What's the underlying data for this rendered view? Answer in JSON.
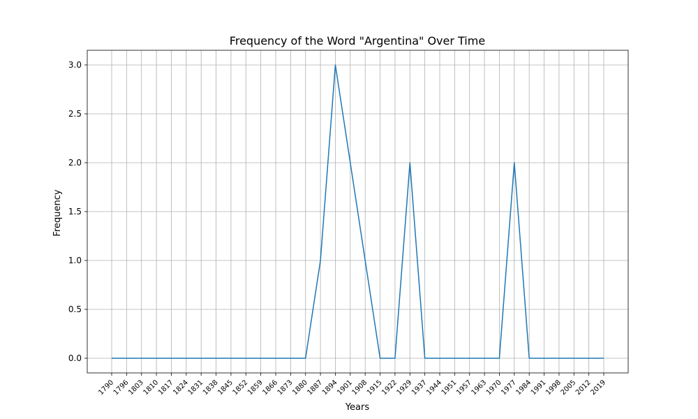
{
  "chart_data": {
    "type": "line",
    "title": "Frequency of the Word \"Argentina\" Over Time",
    "xlabel": "Years",
    "ylabel": "Frequency",
    "ylim": [
      -0.15,
      3.15
    ],
    "yticks": [
      0.0,
      0.5,
      1.0,
      1.5,
      2.0,
      2.5,
      3.0
    ],
    "ytick_labels": [
      "0.0",
      "0.5",
      "1.0",
      "1.5",
      "2.0",
      "2.5",
      "3.0"
    ],
    "grid": true,
    "colors": {
      "series": "#1f77b4",
      "grid": "#b0b0b0"
    },
    "x": [
      "1790",
      "1796",
      "1803",
      "1810",
      "1817",
      "1824",
      "1831",
      "1838",
      "1845",
      "1852",
      "1859",
      "1866",
      "1873",
      "1880",
      "1887",
      "1894",
      "1901",
      "1908",
      "1915",
      "1922",
      "1929",
      "1937",
      "1944",
      "1951",
      "1957",
      "1963",
      "1970",
      "1977",
      "1984",
      "1991",
      "1998",
      "2005",
      "2012",
      "2019"
    ],
    "series": [
      {
        "values": [
          0,
          0,
          0,
          0,
          0,
          0,
          0,
          0,
          0,
          0,
          0,
          0,
          0,
          0,
          1,
          3,
          2,
          1,
          0,
          0,
          2,
          0,
          0,
          0,
          0,
          0,
          0,
          2,
          0,
          0,
          0,
          0,
          0,
          0
        ]
      }
    ]
  }
}
